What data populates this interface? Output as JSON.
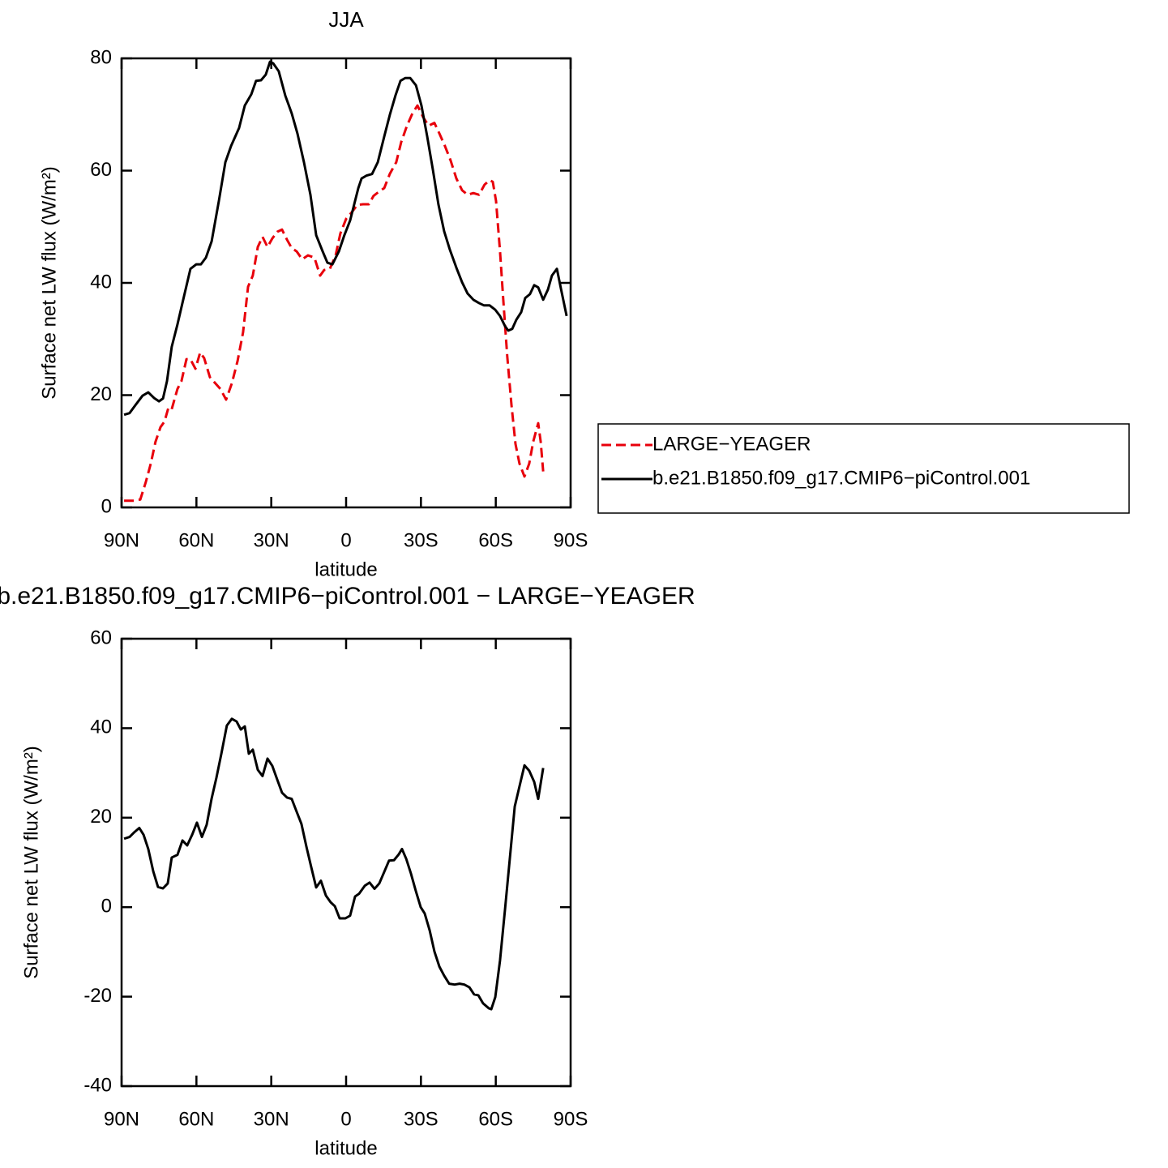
{
  "chart_data": [
    {
      "type": "line",
      "title": "JJA",
      "xlabel": "latitude",
      "ylabel": "Surface net LW flux (W/m²)",
      "xlim": [
        90,
        -90
      ],
      "xticks": [
        {
          "value": 90,
          "label": "90N"
        },
        {
          "value": 60,
          "label": "60N"
        },
        {
          "value": 30,
          "label": "30N"
        },
        0,
        {
          "value": -30,
          "label": "30S"
        },
        {
          "value": -60,
          "label": "60S"
        },
        {
          "value": -90,
          "label": "90S"
        }
      ],
      "ylim": [
        0,
        80
      ],
      "yticks": [
        0,
        20,
        40,
        60,
        80
      ],
      "legend": "right",
      "series": [
        {
          "name": "LARGE−YEAGER",
          "color": "#e8000b",
          "style": "dashed",
          "x": [
            89,
            85.1,
            82.5,
            80.3,
            78.3,
            76.4,
            74.4,
            72.8,
            71.2,
            69.9,
            67.6,
            66,
            64,
            62.4,
            60.4,
            58.5,
            56.9,
            54.6,
            52.6,
            50.4,
            48.1,
            45.8,
            43.5,
            41.3,
            39.3,
            37.4,
            35.4,
            33.5,
            31.5,
            29.6,
            27.6,
            25.7,
            23.7,
            21.8,
            19.8,
            17.6,
            15.3,
            12.7,
            10.4,
            8.8,
            6.5,
            4.2,
            2.3,
            0,
            -2.3,
            -4.5,
            -6.8,
            -9.1,
            -11,
            -13,
            -15.3,
            -17.5,
            -20.1,
            -22.1,
            -24.4,
            -26.6,
            -28.6,
            -30.9,
            -33.1,
            -35.4,
            -37.4,
            -39.6,
            -41.9,
            -44.2,
            -46.5,
            -48.7,
            -51,
            -53.3,
            -55.5,
            -57.5,
            -58.8,
            -60.1,
            -61.7,
            -63,
            -64.6,
            -66.3,
            -67.9,
            -69.5,
            -71.5,
            -73.4,
            -75,
            -77,
            -78,
            -79
          ],
          "values": [
            1.2,
            1.2,
            1.4,
            4.5,
            7.8,
            11.7,
            14.3,
            15.3,
            17.8,
            17.5,
            21.1,
            22.5,
            26.4,
            26.4,
            24.7,
            27.6,
            26.6,
            23.2,
            22.2,
            21.1,
            19.2,
            22.1,
            26.1,
            31.2,
            39.3,
            41.3,
            46.4,
            48.2,
            46.4,
            47.9,
            49.1,
            49.5,
            47.7,
            46.2,
            45.6,
            44.2,
            44.9,
            44.5,
            41.3,
            42.3,
            42.5,
            44.9,
            48.8,
            51.4,
            52.6,
            53.9,
            54,
            54,
            55.5,
            56.2,
            56.9,
            59.4,
            61.5,
            65.1,
            68,
            70.2,
            71.6,
            69.5,
            68,
            68.5,
            66.6,
            64.4,
            61.8,
            58.6,
            56.5,
            55.7,
            56,
            55.7,
            57.5,
            58.3,
            58,
            54.6,
            45.6,
            37,
            26.9,
            18.2,
            11.3,
            7.8,
            5.5,
            7.8,
            11.7,
            15,
            11.7,
            6.4
          ]
        },
        {
          "name": "b.e21.B1850.f09_g17.CMIP6−piControl.001",
          "color": "#000000",
          "style": "solid",
          "x": [
            89,
            86.8,
            84.5,
            81.6,
            79.3,
            77,
            75,
            73.4,
            71.8,
            69.9,
            67.6,
            65.3,
            62.4,
            60.1,
            58.2,
            56.2,
            53.9,
            51,
            48.4,
            46.1,
            42.9,
            40.6,
            38,
            36.1,
            34.1,
            32.2,
            30.5,
            29.2,
            27,
            24.4,
            21.8,
            19.5,
            16.9,
            14.3,
            12,
            9.4,
            7.5,
            5.5,
            2.9,
            0.7,
            -1.6,
            -4.9,
            -6.2,
            -8.1,
            -10.4,
            -12.7,
            -15.3,
            -17.5,
            -19.8,
            -21.8,
            -23.7,
            -25.7,
            -28,
            -30.2,
            -32.5,
            -34.8,
            -37,
            -39.3,
            -41.6,
            -44.2,
            -46.5,
            -48.7,
            -51,
            -53.3,
            -55.2,
            -57.5,
            -59.8,
            -61.7,
            -63.7,
            -65,
            -66.6,
            -68.2,
            -70.2,
            -71.8,
            -73.7,
            -75.4,
            -77,
            -79,
            -80.9,
            -82.5,
            -84.5,
            -86.1,
            -88.4
          ],
          "values": [
            16.5,
            16.8,
            18.2,
            19.9,
            20.5,
            19.5,
            18.9,
            19.4,
            22.5,
            28.6,
            32.6,
            37,
            42.5,
            43.3,
            43.3,
            44.5,
            47.4,
            54.6,
            61.5,
            64.4,
            67.6,
            71.6,
            73.6,
            76,
            76.1,
            77.1,
            79.4,
            79.1,
            77.7,
            73.4,
            70.2,
            66.6,
            61.5,
            55.7,
            48.5,
            45.6,
            43.6,
            43.3,
            45.6,
            48.5,
            51.1,
            56.9,
            58.6,
            59.1,
            59.4,
            61.5,
            66.1,
            69.9,
            73.4,
            76,
            76.5,
            76.5,
            75.2,
            71.6,
            66.1,
            60.1,
            54,
            49.2,
            45.9,
            42.7,
            40.1,
            38.1,
            37,
            36.4,
            36,
            36,
            35.2,
            34.1,
            32.3,
            31.5,
            31.8,
            33.4,
            34.8,
            37.3,
            38,
            39.6,
            39.2,
            37,
            38.8,
            41.3,
            42.5,
            39,
            34.1
          ]
        }
      ]
    },
    {
      "type": "line",
      "title": "b.e21.B1850.f09_g17.CMIP6−piControl.001 − LARGE−YEAGER",
      "xlabel": "latitude",
      "ylabel": "Surface net LW flux (W/m²)",
      "xlim": [
        90,
        -90
      ],
      "xticks": [
        {
          "value": 90,
          "label": "90N"
        },
        {
          "value": 60,
          "label": "60N"
        },
        {
          "value": 30,
          "label": "30N"
        },
        0,
        {
          "value": -30,
          "label": "30S"
        },
        {
          "value": -60,
          "label": "60S"
        },
        {
          "value": -90,
          "label": "90S"
        }
      ],
      "ylim": [
        -40,
        60
      ],
      "yticks": [
        -40,
        -20,
        0,
        20,
        40,
        60
      ],
      "color": "#000000",
      "x": [
        89,
        86.8,
        84.8,
        82.9,
        81.2,
        79.3,
        77.3,
        75.4,
        73.4,
        71.5,
        69.9,
        67.6,
        65.6,
        63.7,
        61.7,
        59.8,
        57.8,
        55.9,
        53.9,
        52,
        50,
        47.8,
        45.8,
        43.9,
        42.2,
        40.6,
        39,
        37.4,
        35.4,
        33.5,
        31.5,
        29.6,
        27.6,
        25.7,
        23.7,
        21.8,
        19.8,
        17.9,
        15.9,
        14,
        12,
        10.1,
        8.1,
        6.2,
        4.5,
        2.6,
        0.3,
        -1.6,
        -3.6,
        -5.2,
        -7.5,
        -9.4,
        -11.4,
        -13.3,
        -15.3,
        -17.2,
        -19.2,
        -21.1,
        -22.4,
        -24.1,
        -26,
        -27.9,
        -29.9,
        -31.5,
        -33.5,
        -35.4,
        -37.4,
        -39.3,
        -41.3,
        -43.5,
        -45.5,
        -47.4,
        -49.4,
        -51.3,
        -53,
        -54.9,
        -57.2,
        -58.2,
        -59.8,
        -61.7,
        -63.7,
        -65.6,
        -67.6,
        -69.5,
        -71.5,
        -73.4,
        -75.4,
        -77,
        -79
      ],
      "values": [
        15.3,
        15.7,
        16.8,
        17.7,
        16.2,
        13,
        8,
        4.5,
        4.2,
        5.3,
        11.1,
        11.7,
        14.9,
        13.8,
        16.2,
        18.9,
        15.7,
        18.4,
        24.3,
        28.9,
        34.3,
        40.6,
        42.1,
        41.5,
        39.7,
        40.4,
        34.3,
        35.2,
        30.7,
        29.3,
        33.2,
        31.6,
        28.5,
        25.6,
        24.5,
        24.2,
        21.3,
        18.6,
        13.5,
        9,
        4.4,
        5.9,
        2.6,
        1.1,
        0.2,
        -2.5,
        -2.5,
        -1.9,
        2.4,
        3,
        4.8,
        5.5,
        4.1,
        5.3,
        7.9,
        10.4,
        10.5,
        11.8,
        13,
        10.8,
        7.5,
        3.7,
        0,
        -1.4,
        -5.2,
        -9.9,
        -13.3,
        -15.3,
        -17.1,
        -17.3,
        -17.1,
        -17.3,
        -17.9,
        -19.5,
        -19.7,
        -21.5,
        -22.6,
        -22.8,
        -20.1,
        -11.9,
        -0.5,
        10.7,
        22.5,
        27,
        31.7,
        30.5,
        28,
        24.2,
        31.1
      ]
    }
  ]
}
